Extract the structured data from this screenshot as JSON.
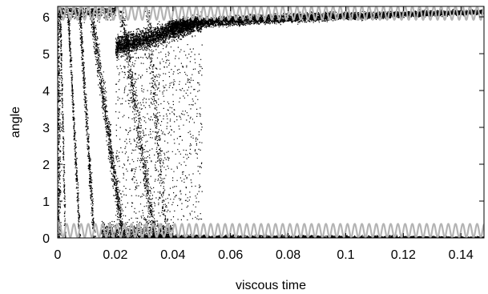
{
  "chart_data": {
    "type": "scatter",
    "title": "",
    "xlabel": "viscous time",
    "ylabel": "angle",
    "xlim": [
      0,
      0.148
    ],
    "ylim": [
      0,
      6.283
    ],
    "x_ticks": [
      0,
      0.02,
      0.04,
      0.06,
      0.08,
      0.1,
      0.12,
      0.14
    ],
    "x_tick_labels": [
      "0",
      "0.02",
      "0.04",
      "0.06",
      "0.08",
      "0.1",
      "0.12",
      "0.14"
    ],
    "y_ticks": [
      0,
      1,
      2,
      3,
      4,
      5,
      6
    ],
    "y_tick_labels": [
      "0",
      "1",
      "2",
      "3",
      "4",
      "5",
      "6"
    ],
    "grid": false,
    "legend": "none",
    "series": [
      {
        "style": "scatter-dots",
        "color": "#000000",
        "description_x_range": [
          0,
          0.148
        ],
        "upper_band_mean": [
          [
            0.02,
            5.2
          ],
          [
            0.04,
            5.75
          ],
          [
            0.06,
            5.9
          ],
          [
            0.08,
            5.98
          ],
          [
            0.1,
            6.02
          ],
          [
            0.12,
            6.08
          ],
          [
            0.14,
            6.12
          ]
        ],
        "lower_band_mean": [
          [
            0.04,
            0.15
          ],
          [
            0.06,
            0.1
          ],
          [
            0.08,
            0.07
          ],
          [
            0.1,
            0.06
          ],
          [
            0.12,
            0.05
          ],
          [
            0.14,
            0.04
          ]
        ]
      },
      {
        "style": "oscillating-line",
        "color": "#b4b4b4",
        "upper": {
          "center": 6.1,
          "amplitude": 0.18
        },
        "lower": {
          "center": 0.2,
          "amplitude": 0.18
        },
        "period": 0.0025
      }
    ]
  }
}
